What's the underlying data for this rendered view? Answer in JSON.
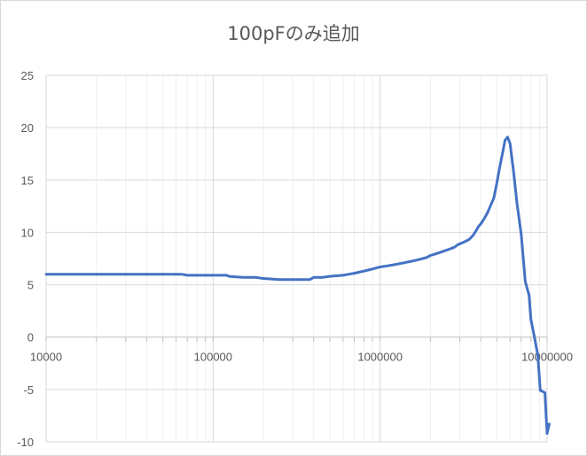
{
  "chart_data": {
    "type": "line",
    "title": "100pFのみ追加",
    "x_scale": "log",
    "xlim": [
      10000,
      10000000
    ],
    "ylim": [
      -10,
      25
    ],
    "x_ticks": [
      "10000",
      "100000",
      "1000000",
      "10000000"
    ],
    "y_ticks": [
      "25",
      "20",
      "15",
      "10",
      "5",
      "0",
      "-5",
      "-10"
    ],
    "grid": true,
    "series": [
      {
        "color": "#4472c4",
        "x": [
          10000,
          15000,
          20000,
          30000,
          40000,
          50000,
          60000,
          65000,
          70000,
          80000,
          100000,
          120000,
          125000,
          150000,
          180000,
          200000,
          250000,
          300000,
          380000,
          400000,
          450000,
          500000,
          600000,
          650000,
          700000,
          750000,
          800000,
          850000,
          900000,
          950000,
          1000000,
          1100000,
          1200000,
          1300000,
          1400000,
          1500000,
          1600000,
          1700000,
          1800000,
          1900000,
          2000000,
          2100000,
          2200000,
          2300000,
          2400000,
          2500000,
          2600000,
          2700000,
          2800000,
          2900000,
          3000000,
          3100000,
          3200000,
          3300000,
          3400000,
          3500000,
          3600000,
          3700000,
          3800000,
          3900000,
          4000000,
          4200000,
          4400000,
          4600000,
          4800000,
          5000000,
          5200000,
          5400000,
          5600000,
          5800000,
          6000000,
          6300000,
          6600000,
          7000000,
          7400000,
          7800000,
          8000000,
          8400000,
          8800000,
          9100000,
          9400000,
          9700000,
          10000000,
          10300000
        ],
        "y": [
          6.0,
          6.0,
          6.0,
          6.0,
          6.0,
          6.0,
          6.0,
          6.0,
          5.9,
          5.9,
          5.9,
          5.9,
          5.8,
          5.7,
          5.7,
          5.6,
          5.5,
          5.5,
          5.5,
          5.7,
          5.7,
          5.8,
          5.9,
          6.0,
          6.1,
          6.2,
          6.3,
          6.4,
          6.5,
          6.6,
          6.7,
          6.8,
          6.9,
          7.0,
          7.1,
          7.2,
          7.3,
          7.4,
          7.5,
          7.6,
          7.8,
          7.9,
          8.0,
          8.1,
          8.2,
          8.3,
          8.4,
          8.5,
          8.6,
          8.8,
          8.9,
          9.0,
          9.1,
          9.2,
          9.3,
          9.5,
          9.7,
          10.0,
          10.3,
          10.6,
          10.8,
          11.3,
          11.9,
          12.6,
          13.3,
          14.7,
          16.2,
          17.5,
          18.8,
          19.1,
          18.5,
          15.8,
          12.8,
          9.8,
          5.3,
          4.0,
          1.7,
          0.0,
          -1.7,
          -5.1,
          -5.2,
          -5.3,
          -9.2,
          -8.3
        ]
      }
    ]
  }
}
